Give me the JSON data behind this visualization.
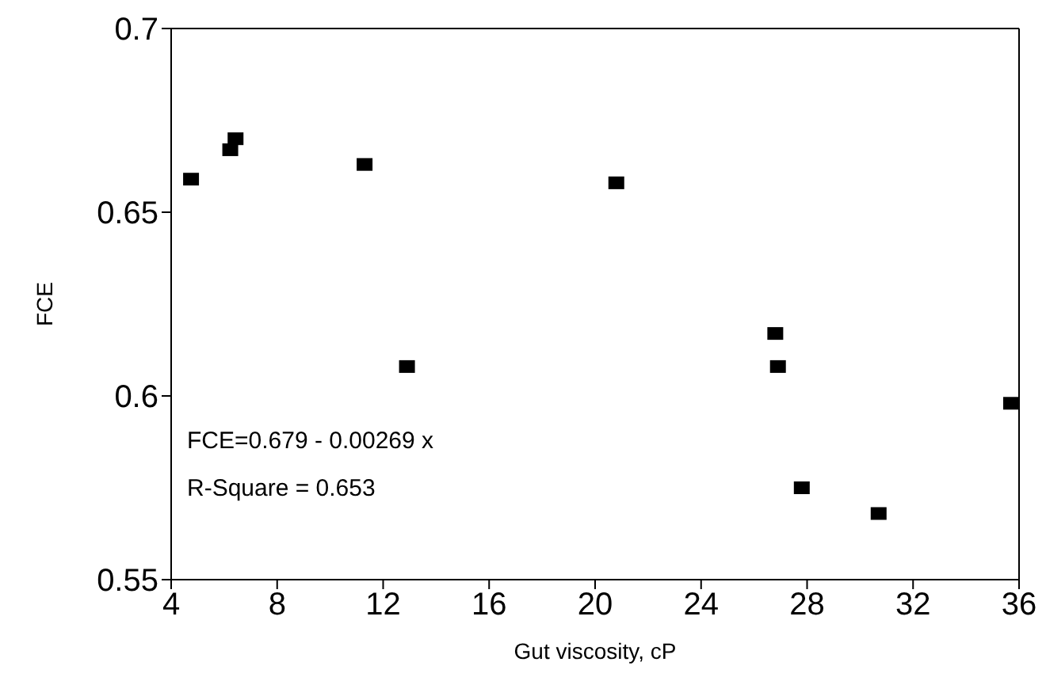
{
  "chart_data": {
    "type": "scatter",
    "xlabel": "Gut viscosity, cP",
    "ylabel": "FCE",
    "x": [
      4.75,
      6.23,
      6.43,
      11.3,
      12.9,
      20.8,
      26.8,
      26.9,
      27.8,
      30.7,
      35.7
    ],
    "values": [
      0.659,
      0.667,
      0.67,
      0.663,
      0.608,
      0.658,
      0.617,
      0.608,
      0.575,
      0.568,
      0.598
    ],
    "color": "#000000",
    "marker": "square",
    "xlim": [
      4,
      36
    ],
    "xticks": [
      4,
      8,
      12,
      16,
      20,
      24,
      28,
      32,
      36
    ],
    "ylim": [
      0.55,
      0.7
    ],
    "yticks": [
      0.55,
      0.6,
      0.65,
      0.7
    ],
    "annotations": [
      "FCE=0.679 - 0.00269 x",
      "R-Square = 0.653"
    ]
  }
}
